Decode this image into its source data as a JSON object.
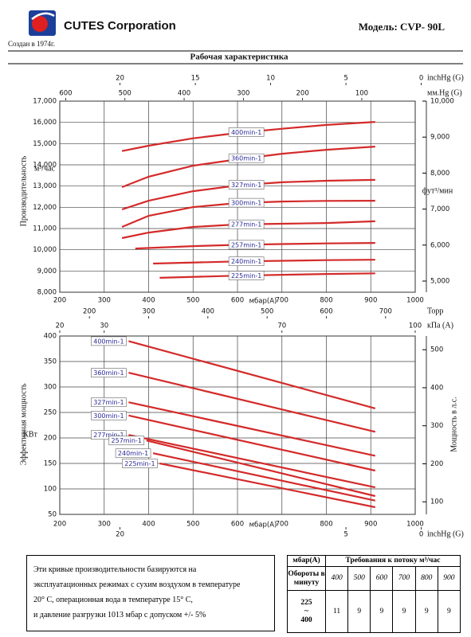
{
  "header": {
    "company": "CUTES Corporation",
    "founded": "Создан в 1974г.",
    "model": "Модель: CVP- 90L",
    "section_title": "Рабочая характеристика"
  },
  "chart_data": [
    {
      "type": "line",
      "xlabel": "мбар(A)",
      "ylabel": "Производительность",
      "yunit": "м³/час",
      "y2label": "фут³/мин",
      "grid": true,
      "xlim": [
        200,
        1000
      ],
      "xticks": [
        200,
        300,
        400,
        500,
        600,
        700,
        800,
        900,
        1000
      ],
      "ylim": [
        8000,
        17000
      ],
      "yticks": [
        {
          "value": 8000,
          "label": "8,000"
        },
        {
          "value": 9000,
          "label": "9,000"
        },
        {
          "value": 10000,
          "label": "10,000"
        },
        {
          "value": 11000,
          "label": "11,000"
        },
        {
          "value": 12000,
          "label": "12,000"
        },
        {
          "value": 13000,
          "label": "13,000"
        },
        {
          "value": 14000,
          "label": "14,000"
        },
        {
          "value": 15000,
          "label": "15,000"
        },
        {
          "value": 16000,
          "label": "16,000"
        },
        {
          "value": 17000,
          "label": "17,000"
        }
      ],
      "y2lim": [
        4690,
        10000
      ],
      "y2ticks": [
        {
          "value": 5000,
          "label": "5,000"
        },
        {
          "value": 6000,
          "label": "6,000"
        },
        {
          "value": 7000,
          "label": "7,000"
        },
        {
          "value": 8000,
          "label": "8,000"
        },
        {
          "value": 9000,
          "label": "9,000"
        },
        {
          "value": 10000,
          "label": "10,000"
        }
      ],
      "top_axes": [
        {
          "label": "inchHg (G)",
          "lim": [
            24.0,
            0.4
          ],
          "ticks": [
            20,
            15,
            10,
            5,
            0
          ]
        },
        {
          "label": "мм.Hg (G)",
          "lim": [
            610,
            9.75
          ],
          "ticks": [
            600,
            500,
            400,
            300,
            200,
            100
          ]
        }
      ],
      "series": [
        {
          "name": "400min-1",
          "color": "#d42a2a",
          "x": [
            340,
            400,
            500,
            600,
            700,
            800,
            910
          ],
          "values": [
            14650,
            14900,
            15250,
            15500,
            15700,
            15880,
            16020
          ]
        },
        {
          "name": "360min-1",
          "color": "#d42a2a",
          "x": [
            340,
            400,
            500,
            600,
            700,
            800,
            910
          ],
          "values": [
            12950,
            13440,
            13960,
            14260,
            14520,
            14710,
            14860
          ]
        },
        {
          "name": "327min-1",
          "color": "#d42a2a",
          "x": [
            340,
            400,
            500,
            600,
            700,
            800,
            910
          ],
          "values": [
            11900,
            12310,
            12760,
            13030,
            13180,
            13250,
            13290
          ]
        },
        {
          "name": "300min-1",
          "color": "#d42a2a",
          "x": [
            340,
            400,
            500,
            600,
            700,
            800,
            910
          ],
          "values": [
            11075,
            11600,
            12010,
            12200,
            12270,
            12300,
            12310
          ]
        },
        {
          "name": "277min-1",
          "color": "#d42a2a",
          "x": [
            340,
            400,
            500,
            600,
            700,
            800,
            910
          ],
          "values": [
            10550,
            10810,
            11075,
            11190,
            11225,
            11260,
            11340
          ]
        },
        {
          "name": "257min-1",
          "color": "#d42a2a",
          "x": [
            370,
            500,
            600,
            700,
            800,
            910
          ],
          "values": [
            10060,
            10170,
            10230,
            10270,
            10300,
            10320
          ]
        },
        {
          "name": "240min-1",
          "color": "#d42a2a",
          "x": [
            410,
            600,
            800,
            910
          ],
          "values": [
            9350,
            9450,
            9510,
            9530
          ]
        },
        {
          "name": "225min-1",
          "color": "#d42a2a",
          "x": [
            425,
            600,
            800,
            910
          ],
          "values": [
            8680,
            8780,
            8860,
            8890
          ]
        }
      ]
    },
    {
      "type": "line",
      "xlabel": "мбар(A)",
      "ylabel": "Эффективная мощность",
      "yunit": "КВт",
      "y2label": "Мощность в л.с.",
      "grid": true,
      "xlim": [
        200,
        1000
      ],
      "xticks": [
        200,
        300,
        400,
        500,
        600,
        700,
        800,
        900,
        1000
      ],
      "ylim": [
        50,
        400
      ],
      "yticks": [
        50,
        100,
        150,
        200,
        250,
        300,
        350,
        400
      ],
      "y2lim": [
        67,
        536
      ],
      "y2ticks": [
        100,
        200,
        300,
        400,
        500
      ],
      "top_axes": [
        {
          "label": "Торр",
          "lim": [
            150,
            750
          ],
          "ticks": [
            200,
            300,
            400,
            500,
            600,
            700
          ]
        },
        {
          "label": "кПа (A)",
          "lim": [
            20,
            100
          ],
          "ticks": [
            20,
            30,
            70,
            100
          ]
        }
      ],
      "bottom_axes": [
        {
          "label": "inchHg (G)",
          "lim": [
            24.0,
            0.4
          ],
          "ticks": [
            20,
            5,
            0
          ]
        }
      ],
      "series": [
        {
          "name": "400min-1",
          "color": "#d42a2a",
          "x": [
            355,
            910
          ],
          "values": [
            390,
            258
          ]
        },
        {
          "name": "360min-1",
          "color": "#d42a2a",
          "x": [
            355,
            910
          ],
          "values": [
            328,
            212
          ]
        },
        {
          "name": "327min-1",
          "color": "#d42a2a",
          "x": [
            355,
            910
          ],
          "values": [
            270,
            165
          ]
        },
        {
          "name": "300min-1",
          "color": "#d42a2a",
          "x": [
            355,
            910
          ],
          "values": [
            244,
            136
          ]
        },
        {
          "name": "277min-1",
          "color": "#d42a2a",
          "x": [
            355,
            910
          ],
          "values": [
            206,
            103
          ]
        },
        {
          "name": "257min-1",
          "color": "#d42a2a",
          "x": [
            395,
            910
          ],
          "values": [
            195,
            86
          ]
        },
        {
          "name": "240min-1",
          "color": "#d42a2a",
          "x": [
            410,
            910
          ],
          "values": [
            170,
            77
          ]
        },
        {
          "name": "225min-1",
          "color": "#d42a2a",
          "x": [
            425,
            910
          ],
          "values": [
            150,
            64
          ]
        }
      ]
    }
  ],
  "note": {
    "lines": [
      "Эти кривые производительности базируются на",
      "эксплуатационных режимах с сухим воздухом в температуре",
      "20° C, операционная вода в температуре 15° C,",
      "и давление разгрузки 1013 мбар с допуском +/- 5%"
    ]
  },
  "table": {
    "header": [
      "мбар(A)",
      "Требования к потоку м³/час"
    ],
    "rows": [
      [
        "Обороты в минуту",
        400,
        500,
        600,
        700,
        800,
        900
      ],
      [
        [
          "225",
          "~",
          "400"
        ],
        11,
        9,
        9,
        9,
        9,
        9
      ]
    ]
  }
}
